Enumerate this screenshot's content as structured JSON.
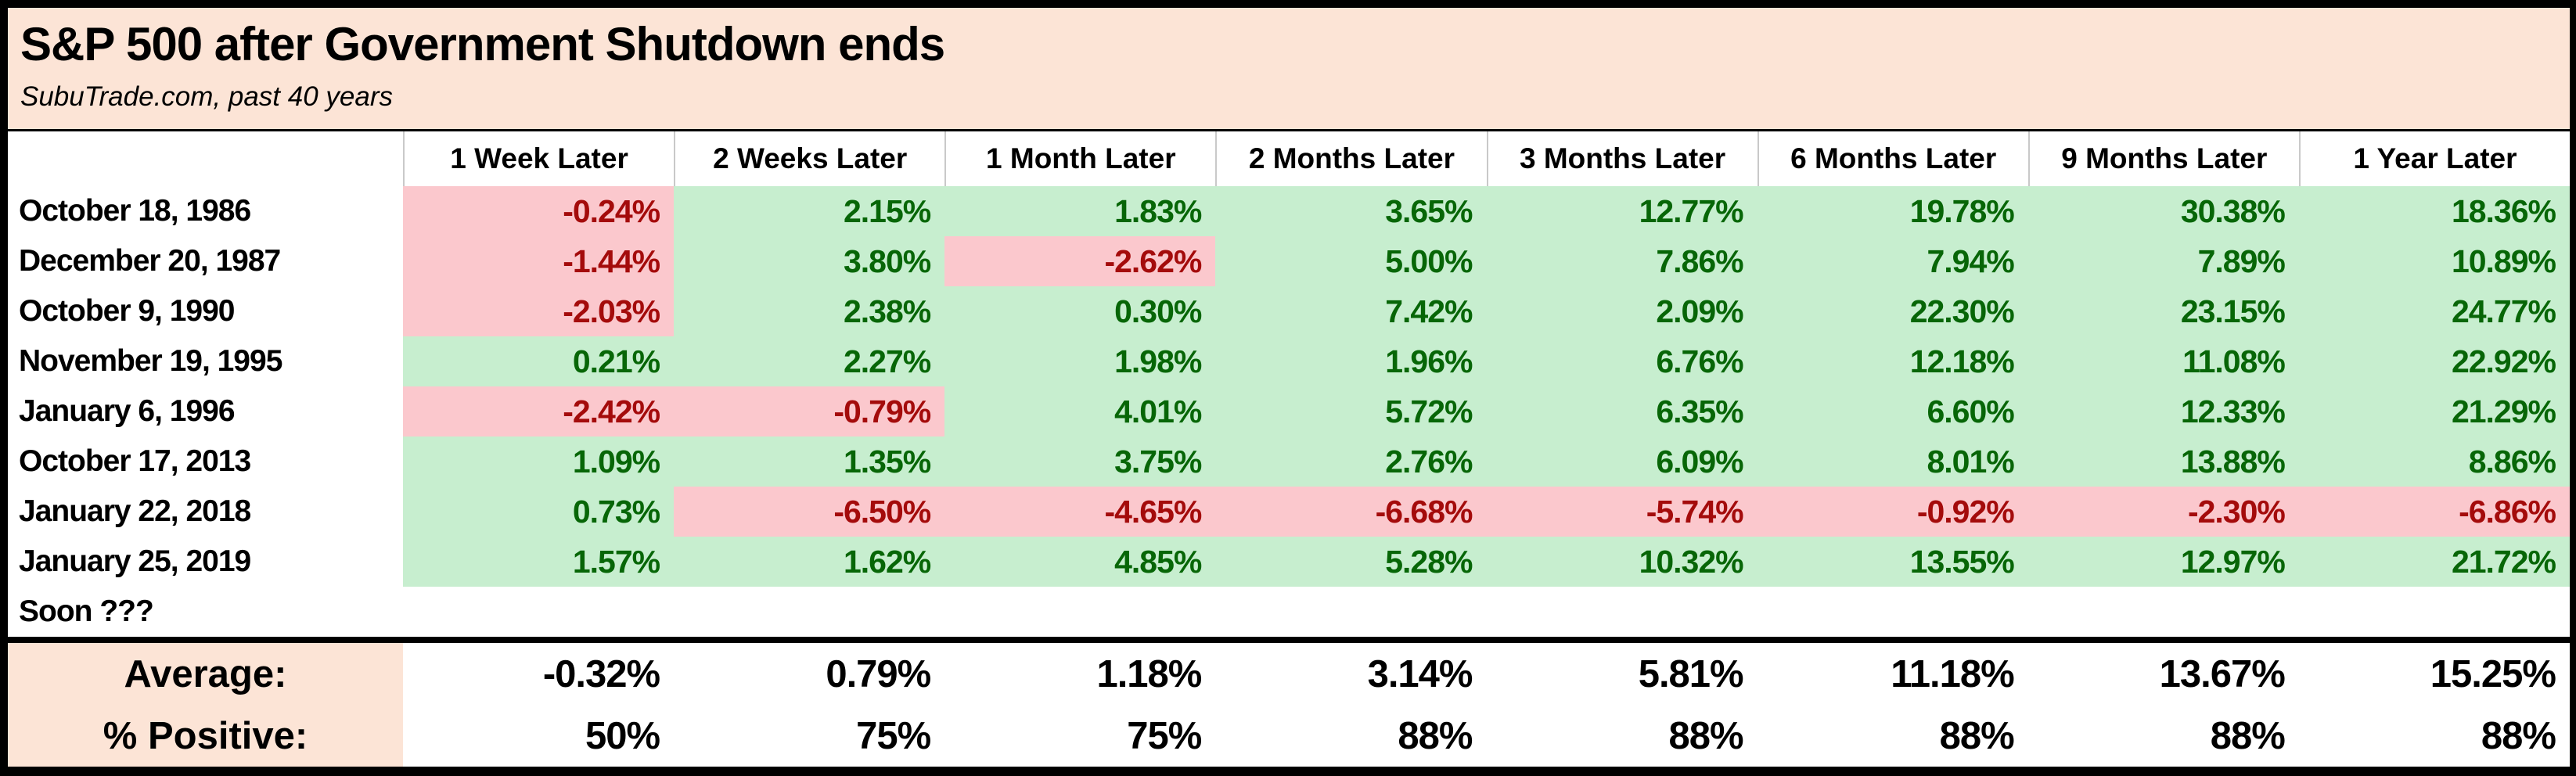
{
  "title": "S&P 500 after Government Shutdown ends",
  "subtitle": "SubuTrade.com, past 40 years",
  "colors": {
    "title_background": "#fce4d6",
    "positive_cell_background": "#c7eecf",
    "positive_text": "#076607",
    "negative_cell_background": "#fbc8cd",
    "negative_text": "#a40b0b",
    "summary_label_background": "#fce4d6",
    "border": "#000000"
  },
  "chart_data": {
    "type": "table",
    "title": "S&P 500 after Government Shutdown ends",
    "subtitle": "SubuTrade.com, past 40 years",
    "columns": [
      "1 Week Later",
      "2 Weeks Later",
      "1 Month Later",
      "2 Months Later",
      "3 Months Later",
      "6 Months Later",
      "9 Months Later",
      "1 Year Later"
    ],
    "rows": [
      {
        "label": "October 18, 1986",
        "values": [
          "-0.24%",
          "2.15%",
          "1.83%",
          "3.65%",
          "12.77%",
          "19.78%",
          "30.38%",
          "18.36%"
        ]
      },
      {
        "label": "December 20, 1987",
        "values": [
          "-1.44%",
          "3.80%",
          "-2.62%",
          "5.00%",
          "7.86%",
          "7.94%",
          "7.89%",
          "10.89%"
        ]
      },
      {
        "label": "October 9, 1990",
        "values": [
          "-2.03%",
          "2.38%",
          "0.30%",
          "7.42%",
          "2.09%",
          "22.30%",
          "23.15%",
          "24.77%"
        ]
      },
      {
        "label": "November 19, 1995",
        "values": [
          "0.21%",
          "2.27%",
          "1.98%",
          "1.96%",
          "6.76%",
          "12.18%",
          "11.08%",
          "22.92%"
        ]
      },
      {
        "label": "January 6, 1996",
        "values": [
          "-2.42%",
          "-0.79%",
          "4.01%",
          "5.72%",
          "6.35%",
          "6.60%",
          "12.33%",
          "21.29%"
        ]
      },
      {
        "label": "October 17, 2013",
        "values": [
          "1.09%",
          "1.35%",
          "3.75%",
          "2.76%",
          "6.09%",
          "8.01%",
          "13.88%",
          "8.86%"
        ]
      },
      {
        "label": "January 22, 2018",
        "values": [
          "0.73%",
          "-6.50%",
          "-4.65%",
          "-6.68%",
          "-5.74%",
          "-0.92%",
          "-2.30%",
          "-6.86%"
        ]
      },
      {
        "label": "January 25, 2019",
        "values": [
          "1.57%",
          "1.62%",
          "4.85%",
          "5.28%",
          "10.32%",
          "13.55%",
          "12.97%",
          "21.72%"
        ]
      },
      {
        "label": "Soon ???",
        "values": [
          "",
          "",
          "",
          "",
          "",
          "",
          "",
          ""
        ]
      }
    ],
    "summary": {
      "average_label": "Average:",
      "average_values": [
        "-0.32%",
        "0.79%",
        "1.18%",
        "3.14%",
        "5.81%",
        "11.18%",
        "13.67%",
        "15.25%"
      ],
      "positive_label": "% Positive:",
      "positive_values": [
        "50%",
        "75%",
        "75%",
        "88%",
        "88%",
        "88%",
        "88%",
        "88%"
      ]
    }
  }
}
